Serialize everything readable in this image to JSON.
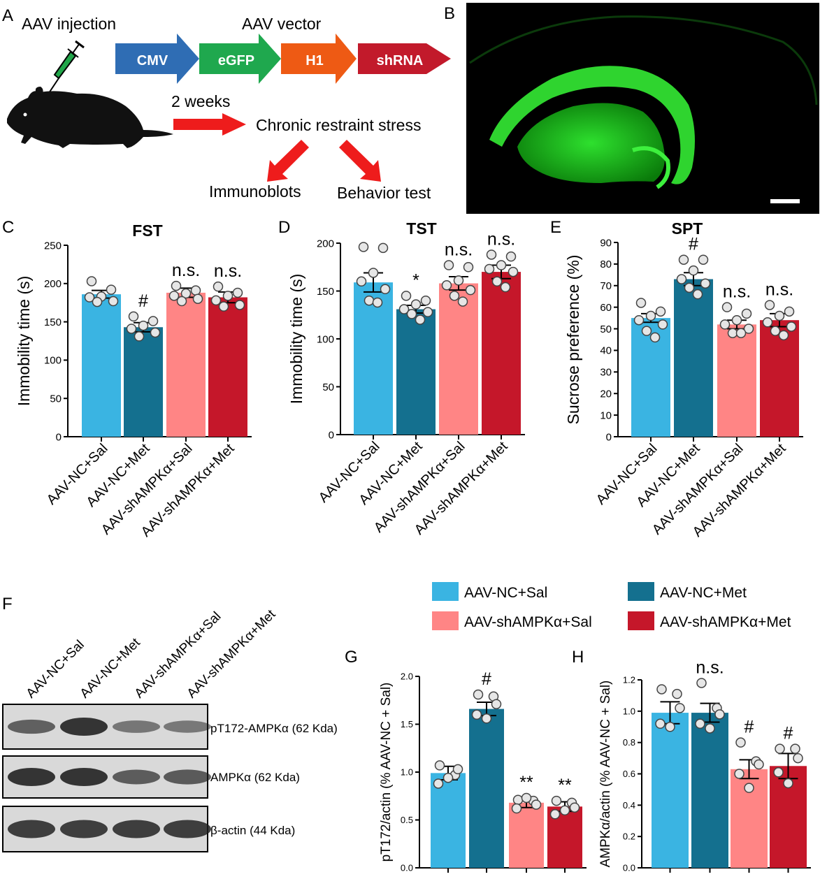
{
  "panels": {
    "A": "A",
    "B": "B",
    "C": "C",
    "D": "D",
    "E": "E",
    "F": "F",
    "G": "G",
    "H": "H"
  },
  "colors": {
    "AAV-NC+Sal": "#3ab4e2",
    "AAV-NC+Met": "#14708f",
    "AAV-shAMPKa+Sal": "#ff8585",
    "AAV-shAMPKa+Met": "#c5172a"
  },
  "schematic": {
    "injection_label": "AAV injection",
    "vector_label": "AAV vector",
    "vector_parts": [
      {
        "label": "CMV",
        "color": "#2f6db4"
      },
      {
        "label": "eGFP",
        "color": "#1fa84e"
      },
      {
        "label": "H1",
        "color": "#ee5a14"
      },
      {
        "label": "shRNA",
        "color": "#c21a2b"
      }
    ],
    "weeks_label": "2 weeks",
    "stress_label": "Chronic restraint stress",
    "outcome_left": "Immunoblots",
    "outcome_right": "Behavior test"
  },
  "categories": [
    "AAV-NC+Sal",
    "AAV-NC+Met",
    "AAV-shAMPKα+Sal",
    "AAV-shAMPKα+Met"
  ],
  "legend": [
    "AAV-NC+Sal",
    "AAV-NC+Met",
    "AAV-shAMPKα+Sal",
    "AAV-shAMPKα+Met"
  ],
  "blot": {
    "bands": [
      "pT172-AMPKα (62 Kda)",
      "AMPKα (62 Kda)",
      "β-actin (44 Kda)"
    ],
    "pT172_intensity": [
      0.99,
      1.66,
      0.68,
      0.64
    ],
    "AMPK_intensity": [
      0.99,
      0.99,
      0.63,
      0.65
    ],
    "actin_intensity": [
      1.0,
      1.0,
      1.0,
      1.0
    ]
  },
  "chart_data": [
    {
      "panel": "C",
      "type": "bar",
      "title": "FST",
      "categories": [
        "AAV-NC+Sal",
        "AAV-NC+Met",
        "AAV-shAMPKα+Sal",
        "AAV-shAMPKα+Met"
      ],
      "ylabel": "Immobility time (s)",
      "ylim": [
        0,
        250
      ],
      "yticks": [
        0,
        50,
        100,
        150,
        200,
        250
      ],
      "values": [
        186,
        143,
        188,
        182
      ],
      "sem": [
        5,
        6,
        6,
        7
      ],
      "annotations": [
        "",
        "#",
        "n.s.",
        "n.s."
      ],
      "points": [
        [
          203,
          192,
          183,
          182,
          177,
          176
        ],
        [
          157,
          151,
          145,
          141,
          136,
          131
        ],
        [
          197,
          191,
          187,
          184,
          180,
          177
        ],
        [
          196,
          188,
          184,
          178,
          172,
          170
        ]
      ]
    },
    {
      "panel": "D",
      "type": "bar",
      "title": "TST",
      "categories": [
        "AAV-NC+Sal",
        "AAV-NC+Met",
        "AAV-shAMPKα+Sal",
        "AAV-shAMPKα+Met"
      ],
      "ylabel": "Immobility time (s)",
      "ylim": [
        0,
        200
      ],
      "yticks": [
        0,
        50,
        100,
        150,
        200
      ],
      "values": [
        159,
        131,
        158,
        170
      ],
      "sem": [
        10,
        4,
        7,
        7
      ],
      "annotations": [
        "",
        "*",
        "n.s.",
        "n.s."
      ],
      "points": [
        [
          196,
          195,
          169,
          160,
          152,
          140,
          138
        ],
        [
          145,
          140,
          136,
          131,
          128,
          126,
          120
        ],
        [
          177,
          175,
          161,
          156,
          151,
          145,
          139
        ],
        [
          188,
          186,
          177,
          173,
          170,
          160,
          154
        ]
      ]
    },
    {
      "panel": "E",
      "type": "bar",
      "title": "SPT",
      "categories": [
        "AAV-NC+Sal",
        "AAV-NC+Met",
        "AAV-shAMPKα+Sal",
        "AAV-shAMPKα+Met"
      ],
      "ylabel": "Sucrose preference (%)",
      "ylim": [
        0,
        90
      ],
      "yticks": [
        0,
        10,
        20,
        30,
        40,
        50,
        60,
        70,
        80,
        90
      ],
      "values": [
        55,
        73,
        52,
        54
      ],
      "sem": [
        2,
        3,
        2,
        3
      ],
      "annotations": [
        "",
        "#",
        "n.s.",
        "n.s."
      ],
      "points": [
        [
          62,
          58,
          56,
          54,
          52,
          49,
          46
        ],
        [
          82,
          82,
          77,
          73,
          71,
          69,
          66
        ],
        [
          60,
          57,
          54,
          52,
          50,
          48,
          48
        ],
        [
          61,
          58,
          56,
          53,
          51,
          49,
          47
        ]
      ]
    },
    {
      "panel": "G",
      "type": "bar",
      "title": "",
      "categories": [
        "AAV-NC+Sal",
        "AAV-NC+Met",
        "AAV-shAMPKα+Sal",
        "AAV-shAMPKα+Met"
      ],
      "ylabel": "pT172/actin (% AAV-NC + Sal)",
      "ylim": [
        0,
        2.0
      ],
      "yticks": [
        "0.0",
        "0.5",
        "1.0",
        "1.5",
        "2.0"
      ],
      "values": [
        0.99,
        1.66,
        0.68,
        0.64
      ],
      "sem": [
        0.07,
        0.07,
        0.05,
        0.05
      ],
      "annotations": [
        "",
        "#",
        "**",
        "**"
      ],
      "points": [
        [
          1.07,
          0.97,
          1.03,
          0.88,
          0.94
        ],
        [
          1.81,
          1.79,
          1.71,
          1.6,
          1.56
        ],
        [
          0.71,
          0.7,
          0.66,
          0.62,
          0.73
        ],
        [
          0.7,
          0.68,
          0.63,
          0.56,
          0.6
        ]
      ]
    },
    {
      "panel": "H",
      "type": "bar",
      "title": "",
      "categories": [
        "AAV-NC+Sal",
        "AAV-NC+Met",
        "AAV-shAMPKα+Sal",
        "AAV-shAMPKα+Met"
      ],
      "ylabel": "AMPKα/actin (% AAV-NC + Sal)",
      "ylim": [
        0,
        1.2
      ],
      "yticks": [
        "0.0",
        "0.2",
        "0.4",
        "0.6",
        "0.8",
        "1.0",
        "1.2"
      ],
      "values": [
        0.99,
        0.99,
        0.63,
        0.65
      ],
      "sem": [
        0.07,
        0.06,
        0.06,
        0.08
      ],
      "annotations": [
        "",
        "n.s.",
        "#",
        "#"
      ],
      "points": [
        [
          1.14,
          1.11,
          1.02,
          0.92,
          0.9
        ],
        [
          1.18,
          1.02,
          0.98,
          0.92,
          0.89
        ],
        [
          0.8,
          0.68,
          0.66,
          0.6,
          0.51
        ],
        [
          0.76,
          0.76,
          0.7,
          0.61,
          0.54
        ]
      ]
    }
  ]
}
